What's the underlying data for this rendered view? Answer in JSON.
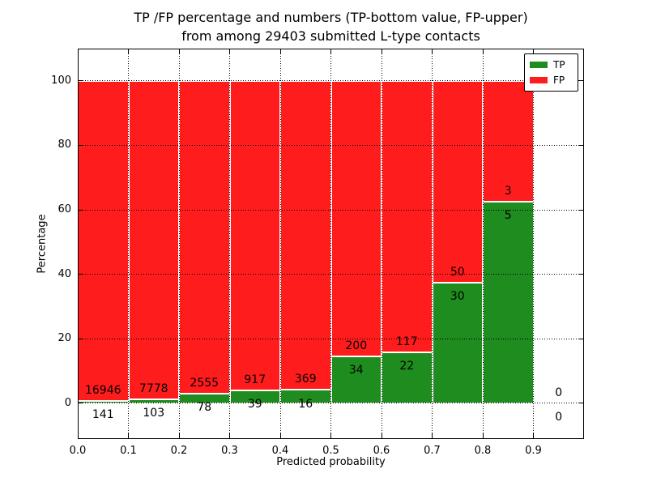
{
  "figure": {
    "title_line1": "TP /FP percentage and numbers (TP-bottom value, FP-upper)",
    "title_line2": "from among 29403 submitted L-type contacts",
    "xlabel": "Predicted probability",
    "ylabel": "Percentage"
  },
  "chart_data": {
    "type": "bar",
    "subtype": "stacked-100-percent",
    "title": "TP /FP percentage and numbers (TP-bottom value, FP-upper) from among 29403 submitted L-type contacts",
    "xlabel": "Predicted probability",
    "ylabel": "Percentage",
    "total_contacts": 29403,
    "bin_width": 0.1,
    "categories": [
      "0.0-0.1",
      "0.1-0.2",
      "0.2-0.3",
      "0.3-0.4",
      "0.4-0.5",
      "0.5-0.6",
      "0.6-0.7",
      "0.7-0.8",
      "0.8-0.9",
      "0.9-1.0"
    ],
    "series": [
      {
        "name": "TP",
        "color": "#1e8c1e",
        "counts": [
          141,
          103,
          78,
          39,
          16,
          34,
          22,
          30,
          5,
          0
        ]
      },
      {
        "name": "FP",
        "color": "#ff1c1c",
        "counts": [
          16946,
          7778,
          2555,
          917,
          369,
          200,
          117,
          50,
          3,
          0
        ]
      }
    ],
    "tp_percent": [
      0.83,
      1.31,
      2.96,
      4.08,
      4.16,
      14.53,
      15.83,
      37.5,
      62.5,
      0
    ],
    "bins": [
      {
        "x0": 0.0,
        "tp": 141,
        "fp": 16946
      },
      {
        "x0": 0.1,
        "tp": 103,
        "fp": 7778
      },
      {
        "x0": 0.2,
        "tp": 78,
        "fp": 2555
      },
      {
        "x0": 0.3,
        "tp": 39,
        "fp": 917
      },
      {
        "x0": 0.4,
        "tp": 16,
        "fp": 369
      },
      {
        "x0": 0.5,
        "tp": 34,
        "fp": 200
      },
      {
        "x0": 0.6,
        "tp": 22,
        "fp": 117
      },
      {
        "x0": 0.7,
        "tp": 30,
        "fp": 50
      },
      {
        "x0": 0.8,
        "tp": 5,
        "fp": 3
      },
      {
        "x0": 0.9,
        "tp": 0,
        "fp": 0
      }
    ],
    "axes": {
      "xlim": [
        0,
        1.0
      ],
      "ylim": [
        -11.06,
        110
      ],
      "xticks": [
        {
          "v": 0.0,
          "label": "0.0"
        },
        {
          "v": 0.1,
          "label": "0.1"
        },
        {
          "v": 0.2,
          "label": "0.2"
        },
        {
          "v": 0.3,
          "label": "0.3"
        },
        {
          "v": 0.4,
          "label": "0.4"
        },
        {
          "v": 0.5,
          "label": "0.5"
        },
        {
          "v": 0.6,
          "label": "0.6"
        },
        {
          "v": 0.7,
          "label": "0.7"
        },
        {
          "v": 0.8,
          "label": "0.8"
        },
        {
          "v": 0.9,
          "label": "0.9"
        }
      ],
      "yticks": [
        {
          "v": 0,
          "label": "0"
        },
        {
          "v": 20,
          "label": "20"
        },
        {
          "v": 40,
          "label": "40"
        },
        {
          "v": 60,
          "label": "60"
        },
        {
          "v": 80,
          "label": "80"
        },
        {
          "v": 100,
          "label": "100"
        }
      ],
      "grid": "dotted, drawn above bars",
      "legend_position": "upper right"
    },
    "legend": [
      {
        "label": "TP",
        "color": "#1e8c1e"
      },
      {
        "label": "FP",
        "color": "#ff1c1c"
      }
    ]
  }
}
